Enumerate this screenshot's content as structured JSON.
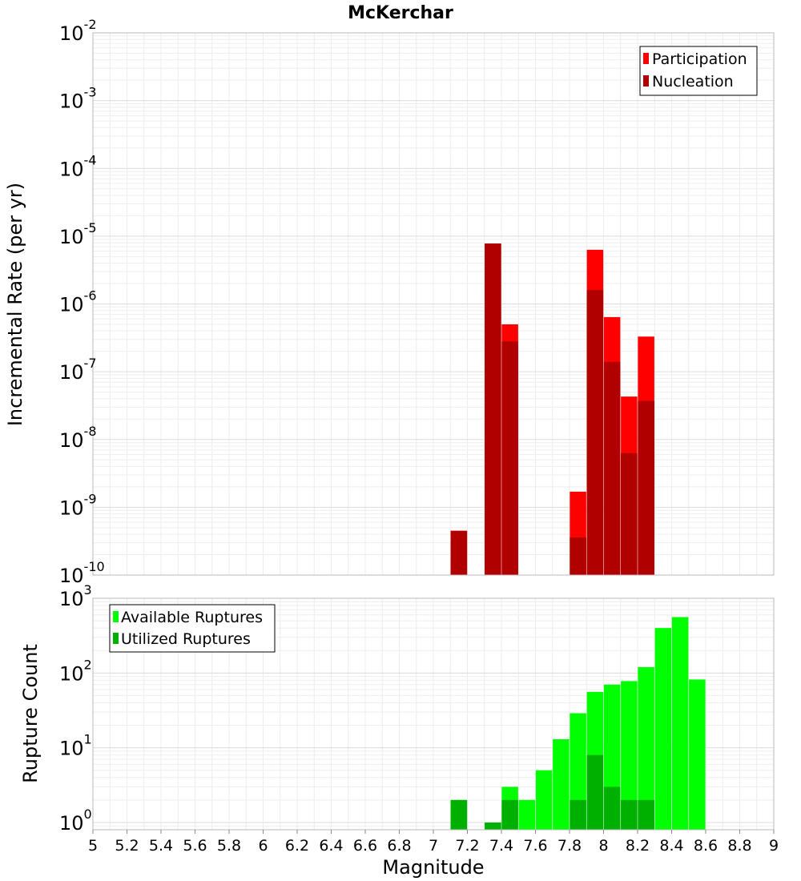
{
  "chart_data": [
    {
      "type": "bar",
      "title": "McKerchar",
      "xlabel": "",
      "ylabel": "Incremental Rate (per yr)",
      "y_scale": "log",
      "ylim": [
        1e-10,
        0.01
      ],
      "xlim": [
        5,
        9
      ],
      "grid": true,
      "legend_position": "top-right",
      "y_ticks": [
        {
          "base": "10",
          "exp": "-10"
        },
        {
          "base": "10",
          "exp": "-9"
        },
        {
          "base": "10",
          "exp": "-8"
        },
        {
          "base": "10",
          "exp": "-7"
        },
        {
          "base": "10",
          "exp": "-6"
        },
        {
          "base": "10",
          "exp": "-5"
        },
        {
          "base": "10",
          "exp": "-4"
        },
        {
          "base": "10",
          "exp": "-3"
        },
        {
          "base": "10",
          "exp": "-2"
        }
      ],
      "series": [
        {
          "name": "Participation",
          "color": "#ff0000",
          "x": [
            7.15,
            7.35,
            7.45,
            7.85,
            7.95,
            8.05,
            8.15,
            8.25
          ],
          "values": [
            4.5e-10,
            7.8e-06,
            5e-07,
            1.7e-09,
            6.3e-06,
            6.4e-07,
            4.3e-08,
            3.3e-07
          ]
        },
        {
          "name": "Nucleation",
          "color": "#b00000",
          "x": [
            7.15,
            7.35,
            7.45,
            7.85,
            7.95,
            8.05,
            8.15,
            8.25
          ],
          "values": [
            4.5e-10,
            7.8e-06,
            2.8e-07,
            3.6e-10,
            1.6e-06,
            1.4e-07,
            6.3e-09,
            3.7e-08
          ]
        }
      ]
    },
    {
      "type": "bar",
      "xlabel": "Magnitude",
      "ylabel": "Rupture Count",
      "y_scale": "log",
      "ylim": [
        0.8,
        1000
      ],
      "xlim": [
        5,
        9
      ],
      "grid": true,
      "legend_position": "top-left",
      "y_ticks": [
        {
          "base": "10",
          "exp": "0"
        },
        {
          "base": "10",
          "exp": "1"
        },
        {
          "base": "10",
          "exp": "2"
        },
        {
          "base": "10",
          "exp": "3"
        }
      ],
      "x_ticks": [
        "5",
        "5.2",
        "5.4",
        "5.6",
        "5.8",
        "6",
        "6.2",
        "6.4",
        "6.6",
        "6.8",
        "7",
        "7.2",
        "7.4",
        "7.6",
        "7.8",
        "8",
        "8.2",
        "8.4",
        "8.6",
        "8.8",
        "9"
      ],
      "series": [
        {
          "name": "Available Ruptures",
          "color": "#00ff00",
          "x": [
            7.15,
            7.35,
            7.45,
            7.55,
            7.65,
            7.75,
            7.85,
            7.95,
            8.05,
            8.15,
            8.25,
            8.35,
            8.45,
            8.55
          ],
          "values": [
            2,
            1,
            3,
            2,
            5,
            13,
            29,
            56,
            70,
            78,
            120,
            400,
            560,
            82
          ]
        },
        {
          "name": "Utilized Ruptures",
          "color": "#00b000",
          "x": [
            7.15,
            7.35,
            7.45,
            7.85,
            7.95,
            8.05,
            8.15,
            8.25
          ],
          "values": [
            2,
            1,
            2,
            2,
            8,
            3,
            2,
            2
          ]
        }
      ]
    }
  ]
}
